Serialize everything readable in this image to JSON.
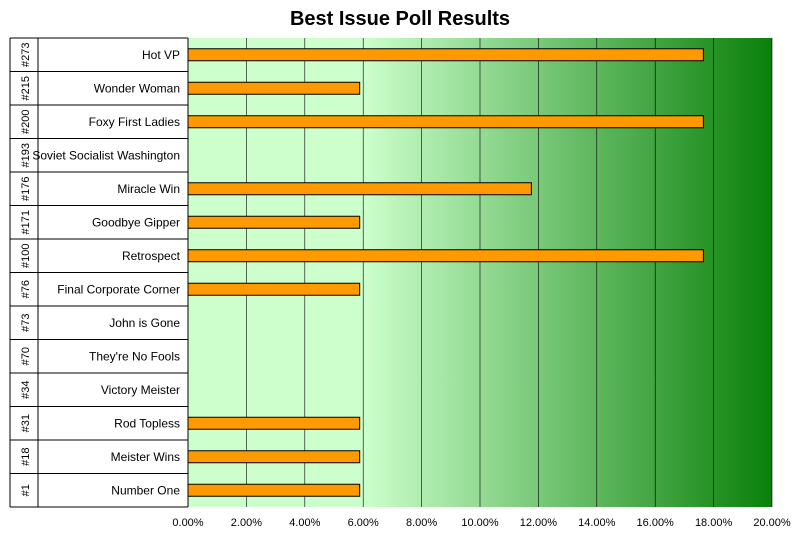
{
  "chart_data": {
    "type": "bar",
    "orientation": "horizontal",
    "title": "Best Issue Poll Results",
    "xlabel": "",
    "ylabel": "",
    "xlim": [
      0,
      20
    ],
    "x_ticks": [
      "0.00%",
      "2.00%",
      "4.00%",
      "6.00%",
      "8.00%",
      "10.00%",
      "12.00%",
      "14.00%",
      "16.00%",
      "18.00%",
      "20.00%"
    ],
    "grid": true,
    "legend": "none",
    "categories": [
      {
        "number": "#273",
        "name": "Hot VP"
      },
      {
        "number": "#215",
        "name": "Wonder Woman"
      },
      {
        "number": "#200",
        "name": "Foxy First Ladies"
      },
      {
        "number": "#193",
        "name": "Soviet Socialist Washington"
      },
      {
        "number": "#176",
        "name": "Miracle Win"
      },
      {
        "number": "#171",
        "name": "Goodbye Gipper"
      },
      {
        "number": "#100",
        "name": "Retrospect"
      },
      {
        "number": "#76",
        "name": "Final Corporate Corner"
      },
      {
        "number": "#73",
        "name": "John is Gone"
      },
      {
        "number": "#70",
        "name": "They're No Fools"
      },
      {
        "number": "#34",
        "name": "Victory Meister"
      },
      {
        "number": "#31",
        "name": "Rod Topless"
      },
      {
        "number": "#18",
        "name": "Meister Wins"
      },
      {
        "number": "#1",
        "name": "Number One"
      }
    ],
    "values": [
      17.65,
      5.88,
      17.65,
      0,
      11.76,
      5.88,
      17.65,
      5.88,
      0,
      0,
      0,
      5.88,
      5.88,
      5.88
    ],
    "colors": {
      "bar": "#ff9900",
      "bar_border": "#000000",
      "plot_light": "#ccffcc",
      "plot_dark": "#0a800a",
      "gridline": "#000000"
    }
  }
}
